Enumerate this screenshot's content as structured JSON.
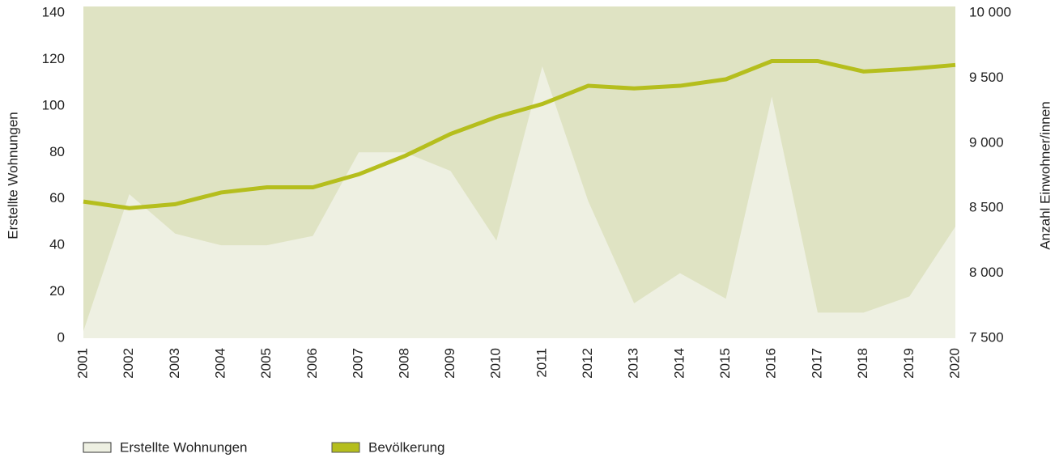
{
  "chart_data": {
    "type": "combo",
    "y_label": "Erstellte Wohnungen",
    "y2_label": "Anzahl Einwohner/innen",
    "categories": [
      "2001",
      "2002",
      "2003",
      "2004",
      "2005",
      "2006",
      "2007",
      "2008",
      "2009",
      "2010",
      "2011",
      "2012",
      "2013",
      "2014",
      "2015",
      "2016",
      "2017",
      "2018",
      "2019",
      "2020"
    ],
    "series": [
      {
        "name": "Erstellte Wohnungen",
        "type": "area",
        "color": "#eef0e2",
        "values": [
          3,
          62,
          45,
          40,
          40,
          44,
          80,
          80,
          72,
          42,
          117,
          59,
          15,
          28,
          17,
          104,
          11,
          11,
          18,
          48
        ]
      },
      {
        "name": "Bevölkerung",
        "type": "line",
        "axis": "y2",
        "color": "#b5be1d",
        "values": [
          8550,
          8500,
          8530,
          8620,
          8660,
          8660,
          8760,
          8900,
          9070,
          9200,
          9300,
          9440,
          9420,
          9440,
          9490,
          9630,
          9630,
          9550,
          9570,
          9600
        ]
      }
    ],
    "plot_background": "#dfe3c3",
    "ylim": [
      0,
      140
    ],
    "yticks": [
      0,
      20,
      40,
      60,
      80,
      100,
      120,
      140
    ],
    "y2lim": [
      7500,
      10000
    ],
    "y2ticks": [
      {
        "value": 7500,
        "label": "7 500"
      },
      {
        "value": 8000,
        "label": "8 000"
      },
      {
        "value": 8500,
        "label": "8 500"
      },
      {
        "value": 9000,
        "label": "9 000"
      },
      {
        "value": 9500,
        "label": "9 500"
      },
      {
        "value": 10000,
        "label": "10 000"
      }
    ],
    "legend": "bottom-left"
  }
}
